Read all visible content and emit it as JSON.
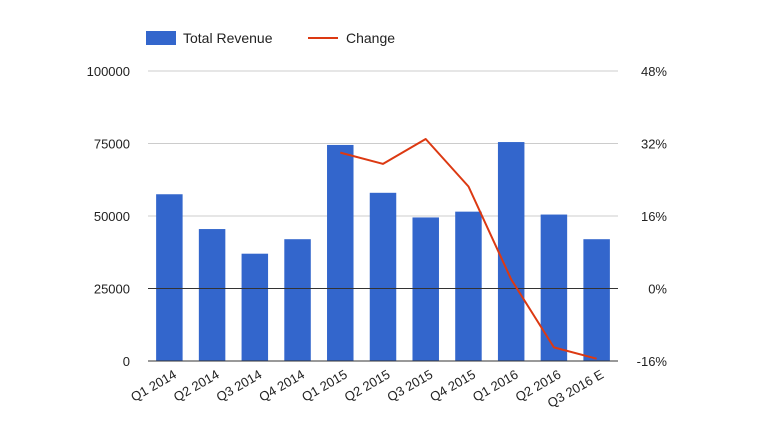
{
  "chart_data": {
    "type": "bar",
    "categories": [
      "Q1 2014",
      "Q2 2014",
      "Q3 2014",
      "Q4 2014",
      "Q1 2015",
      "Q2 2015",
      "Q3 2015",
      "Q4 2015",
      "Q1 2016",
      "Q2 2016",
      "Q3 2016 E"
    ],
    "series": [
      {
        "name": "Total Revenue",
        "type": "bar",
        "axis": "left",
        "color": "#3366cc",
        "values": [
          57500,
          45500,
          37000,
          42000,
          74500,
          58000,
          49500,
          51500,
          75500,
          50500,
          42000
        ]
      },
      {
        "name": "Change",
        "type": "line",
        "axis": "right",
        "color": "#dc3912",
        "values": [
          null,
          null,
          null,
          null,
          30,
          27.5,
          33,
          22.5,
          2,
          -13,
          -15.5
        ]
      }
    ],
    "y_left": {
      "min": 0,
      "max": 100000,
      "ticks": [
        "0",
        "25000",
        "50000",
        "75000",
        "100000"
      ],
      "tick_values": [
        0,
        25000,
        50000,
        75000,
        100000
      ]
    },
    "y_right": {
      "min": -16,
      "max": 48,
      "ticks": [
        "-16%",
        "0%",
        "16%",
        "32%",
        "48%"
      ],
      "tick_values": [
        -16,
        0,
        16,
        32,
        48
      ]
    },
    "grid": true,
    "legend": {
      "position": "top-left",
      "entries": [
        "Total Revenue",
        "Change"
      ]
    },
    "title": "",
    "xlabel": "",
    "ylabel": ""
  }
}
